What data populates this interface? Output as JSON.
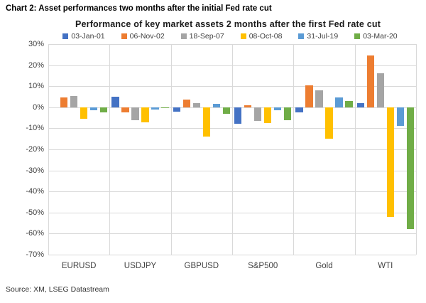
{
  "heading": "Chart 2: Asset performances two months after the initial Fed rate cut",
  "source": "Source: XM, LSEG Datastream",
  "chart_data": {
    "type": "bar",
    "title": "Performance of key market assets 2 months after the first Fed rate cut",
    "categories": [
      "EURUSD",
      "USDJPY",
      "GBPUSD",
      "S&P500",
      "Gold",
      "WTI"
    ],
    "series": [
      {
        "name": "03-Jan-01",
        "color": "#4472C4",
        "values": [
          0,
          5,
          -2,
          -8,
          -2.5,
          2
        ]
      },
      {
        "name": "06-Nov-02",
        "color": "#ED7D31",
        "values": [
          4.5,
          -2.5,
          3.5,
          1,
          10.5,
          24.5
        ]
      },
      {
        "name": "18-Sep-07",
        "color": "#A5A5A5",
        "values": [
          5.5,
          -6,
          2,
          -6.5,
          8,
          16
        ]
      },
      {
        "name": "08-Oct-08",
        "color": "#FFC000",
        "values": [
          -5.5,
          -7,
          -14,
          -7.5,
          -15,
          -52
        ]
      },
      {
        "name": "31-Jul-19",
        "color": "#5B9BD5",
        "values": [
          -1.5,
          -1,
          1.5,
          -1.5,
          4.5,
          -9
        ]
      },
      {
        "name": "03-Mar-20",
        "color": "#70AD47",
        "values": [
          -2.5,
          -0.5,
          -3,
          -6,
          3,
          -58
        ]
      }
    ],
    "ylim": [
      -70,
      30
    ],
    "ytick_step": 10,
    "ytick_labels": [
      "30%",
      "20%",
      "10%",
      "0%",
      "-10%",
      "-20%",
      "-30%",
      "-40%",
      "-50%",
      "-60%",
      "-70%"
    ],
    "grid": true,
    "legend_position": "top",
    "unit": "%"
  }
}
